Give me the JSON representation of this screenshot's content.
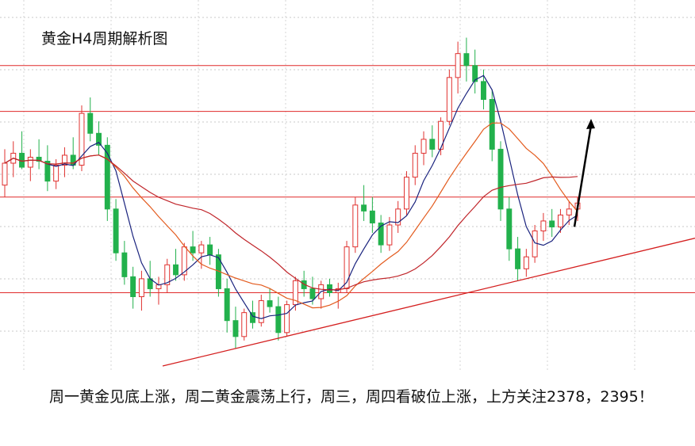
{
  "chart_data": {
    "type": "candlestick",
    "title": "黄金H4周期解析图",
    "caption": "周一黄金见底上涨，周二黄金震荡上行，周三，周四看破位上涨，上方关注2378，2395！",
    "grid": true,
    "colors": {
      "up": "#e0312f",
      "down": "#22b14c",
      "hline": "#e02a2a",
      "trend": "#d41f1f",
      "ma_fast": "#1a237e",
      "ma_mid": "#e35b1e",
      "ma_slow": "#c0252a",
      "arrow": "#000000"
    },
    "candles": [
      [
        2318,
        2336,
        2312,
        2329
      ],
      [
        2329,
        2340,
        2322,
        2334
      ],
      [
        2334,
        2345,
        2326,
        2327
      ],
      [
        2327,
        2336,
        2320,
        2332
      ],
      [
        2332,
        2341,
        2326,
        2330
      ],
      [
        2330,
        2338,
        2315,
        2320
      ],
      [
        2320,
        2331,
        2316,
        2328
      ],
      [
        2328,
        2337,
        2322,
        2333
      ],
      [
        2333,
        2342,
        2326,
        2328
      ],
      [
        2328,
        2358,
        2325,
        2354
      ],
      [
        2354,
        2362,
        2340,
        2344
      ],
      [
        2344,
        2350,
        2333,
        2338
      ],
      [
        2338,
        2342,
        2300,
        2306
      ],
      [
        2306,
        2311,
        2280,
        2284
      ],
      [
        2284,
        2290,
        2268,
        2272
      ],
      [
        2272,
        2277,
        2256,
        2262
      ],
      [
        2262,
        2275,
        2255,
        2271
      ],
      [
        2271,
        2280,
        2262,
        2266
      ],
      [
        2266,
        2272,
        2258,
        2268
      ],
      [
        2268,
        2281,
        2264,
        2278
      ],
      [
        2278,
        2286,
        2270,
        2273
      ],
      [
        2273,
        2289,
        2270,
        2287
      ],
      [
        2287,
        2295,
        2280,
        2284
      ],
      [
        2284,
        2290,
        2276,
        2288
      ],
      [
        2288,
        2292,
        2278,
        2283
      ],
      [
        2283,
        2286,
        2262,
        2266
      ],
      [
        2266,
        2271,
        2244,
        2250
      ],
      [
        2250,
        2257,
        2236,
        2242
      ],
      [
        2242,
        2256,
        2240,
        2254
      ],
      [
        2254,
        2260,
        2246,
        2249
      ],
      [
        2249,
        2263,
        2247,
        2260
      ],
      [
        2260,
        2266,
        2254,
        2257
      ],
      [
        2257,
        2262,
        2240,
        2244
      ],
      [
        2244,
        2260,
        2242,
        2258
      ],
      [
        2258,
        2272,
        2255,
        2270
      ],
      [
        2270,
        2275,
        2262,
        2266
      ],
      [
        2266,
        2272,
        2258,
        2261
      ],
      [
        2261,
        2270,
        2256,
        2268
      ],
      [
        2268,
        2271,
        2262,
        2264
      ],
      [
        2264,
        2269,
        2256,
        2266
      ],
      [
        2266,
        2290,
        2264,
        2287
      ],
      [
        2287,
        2312,
        2284,
        2308
      ],
      [
        2308,
        2318,
        2300,
        2305
      ],
      [
        2305,
        2312,
        2294,
        2299
      ],
      [
        2299,
        2303,
        2284,
        2288
      ],
      [
        2288,
        2302,
        2285,
        2298
      ],
      [
        2298,
        2310,
        2294,
        2306
      ],
      [
        2306,
        2325,
        2303,
        2322
      ],
      [
        2322,
        2338,
        2318,
        2334
      ],
      [
        2334,
        2345,
        2328,
        2341
      ],
      [
        2341,
        2348,
        2332,
        2336
      ],
      [
        2336,
        2352,
        2333,
        2350
      ],
      [
        2350,
        2376,
        2348,
        2372
      ],
      [
        2372,
        2390,
        2364,
        2384
      ],
      [
        2384,
        2392,
        2370,
        2378
      ],
      [
        2378,
        2386,
        2364,
        2370
      ],
      [
        2370,
        2376,
        2356,
        2361
      ],
      [
        2361,
        2366,
        2330,
        2336
      ],
      [
        2336,
        2340,
        2300,
        2306
      ],
      [
        2306,
        2312,
        2280,
        2286
      ],
      [
        2286,
        2292,
        2270,
        2276
      ],
      [
        2276,
        2286,
        2272,
        2282
      ],
      [
        2282,
        2298,
        2279,
        2295
      ],
      [
        2295,
        2304,
        2290,
        2300
      ],
      [
        2300,
        2306,
        2292,
        2297
      ],
      [
        2297,
        2306,
        2294,
        2303
      ],
      [
        2303,
        2310,
        2298,
        2306
      ],
      [
        2306,
        2312,
        2300,
        2309
      ]
    ],
    "ylim": [
      2230,
      2395
    ],
    "horizontal_levels": [
      2378,
      2355,
      2312,
      2264
    ]
  }
}
